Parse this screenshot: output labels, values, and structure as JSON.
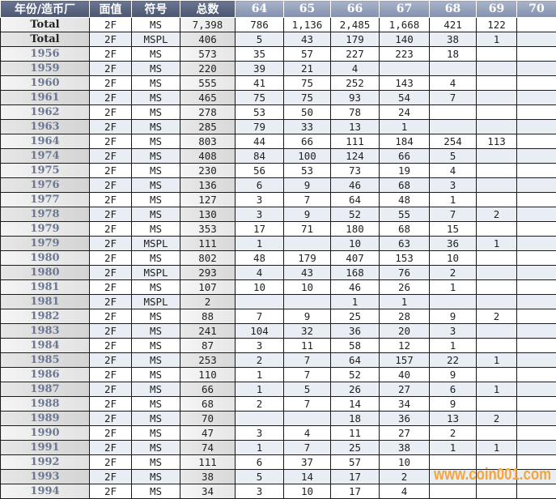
{
  "headers": [
    "年份/造币厂",
    "面值",
    "符号",
    "总数",
    "64",
    "65",
    "66",
    "67",
    "68",
    "69",
    "70"
  ],
  "rows": [
    [
      "Total",
      "2F",
      "MS",
      "7,398",
      "786",
      "1,136",
      "2,485",
      "1,668",
      "421",
      "122",
      ""
    ],
    [
      "Total",
      "2F",
      "MSPL",
      "406",
      "5",
      "43",
      "179",
      "140",
      "38",
      "1",
      ""
    ],
    [
      "1956",
      "2F",
      "MS",
      "573",
      "35",
      "57",
      "227",
      "223",
      "18",
      "",
      ""
    ],
    [
      "1959",
      "2F",
      "MS",
      "220",
      "39",
      "21",
      "4",
      "",
      "",
      "",
      ""
    ],
    [
      "1960",
      "2F",
      "MS",
      "555",
      "41",
      "75",
      "252",
      "143",
      "4",
      "",
      ""
    ],
    [
      "1961",
      "2F",
      "MS",
      "465",
      "75",
      "75",
      "93",
      "54",
      "7",
      "",
      ""
    ],
    [
      "1962",
      "2F",
      "MS",
      "278",
      "53",
      "50",
      "78",
      "24",
      "",
      "",
      ""
    ],
    [
      "1963",
      "2F",
      "MS",
      "285",
      "79",
      "33",
      "13",
      "1",
      "",
      "",
      ""
    ],
    [
      "1964",
      "2F",
      "MS",
      "803",
      "44",
      "66",
      "111",
      "184",
      "254",
      "113",
      ""
    ],
    [
      "1974",
      "2F",
      "MS",
      "408",
      "84",
      "100",
      "124",
      "66",
      "5",
      "",
      ""
    ],
    [
      "1975",
      "2F",
      "MS",
      "230",
      "56",
      "53",
      "73",
      "19",
      "4",
      "",
      ""
    ],
    [
      "1976",
      "2F",
      "MS",
      "136",
      "6",
      "9",
      "46",
      "68",
      "3",
      "",
      ""
    ],
    [
      "1977",
      "2F",
      "MS",
      "127",
      "3",
      "7",
      "64",
      "48",
      "1",
      "",
      ""
    ],
    [
      "1978",
      "2F",
      "MS",
      "130",
      "3",
      "9",
      "52",
      "55",
      "7",
      "2",
      ""
    ],
    [
      "1979",
      "2F",
      "MS",
      "353",
      "17",
      "71",
      "180",
      "68",
      "15",
      "",
      ""
    ],
    [
      "1979",
      "2F",
      "MSPL",
      "111",
      "1",
      "",
      "10",
      "63",
      "36",
      "1",
      ""
    ],
    [
      "1980",
      "2F",
      "MS",
      "802",
      "48",
      "179",
      "407",
      "153",
      "10",
      "",
      ""
    ],
    [
      "1980",
      "2F",
      "MSPL",
      "293",
      "4",
      "43",
      "168",
      "76",
      "2",
      "",
      ""
    ],
    [
      "1981",
      "2F",
      "MS",
      "107",
      "10",
      "10",
      "46",
      "26",
      "1",
      "",
      ""
    ],
    [
      "1981",
      "2F",
      "MSPL",
      "2",
      "",
      "",
      "1",
      "1",
      "",
      "",
      ""
    ],
    [
      "1982",
      "2F",
      "MS",
      "88",
      "7",
      "9",
      "25",
      "28",
      "9",
      "2",
      ""
    ],
    [
      "1983",
      "2F",
      "MS",
      "241",
      "104",
      "32",
      "36",
      "20",
      "3",
      "",
      ""
    ],
    [
      "1984",
      "2F",
      "MS",
      "87",
      "3",
      "11",
      "58",
      "12",
      "1",
      "",
      ""
    ],
    [
      "1985",
      "2F",
      "MS",
      "253",
      "2",
      "7",
      "64",
      "157",
      "22",
      "1",
      ""
    ],
    [
      "1986",
      "2F",
      "MS",
      "110",
      "1",
      "7",
      "52",
      "40",
      "9",
      "",
      ""
    ],
    [
      "1987",
      "2F",
      "MS",
      "66",
      "1",
      "5",
      "26",
      "27",
      "6",
      "1",
      ""
    ],
    [
      "1988",
      "2F",
      "MS",
      "68",
      "2",
      "7",
      "14",
      "34",
      "9",
      "",
      ""
    ],
    [
      "1989",
      "2F",
      "MS",
      "70",
      "",
      "",
      "18",
      "36",
      "13",
      "2",
      ""
    ],
    [
      "1990",
      "2F",
      "MS",
      "47",
      "3",
      "4",
      "11",
      "27",
      "2",
      "",
      ""
    ],
    [
      "1991",
      "2F",
      "MS",
      "74",
      "1",
      "7",
      "25",
      "38",
      "1",
      "1",
      ""
    ],
    [
      "1992",
      "2F",
      "MS",
      "111",
      "6",
      "37",
      "57",
      "10",
      "",
      "",
      ""
    ],
    [
      "1993",
      "2F",
      "MS",
      "38",
      "5",
      "14",
      "17",
      "2",
      "",
      "",
      ""
    ],
    [
      "1994",
      "2F",
      "MS",
      "34",
      "3",
      "10",
      "17",
      "4",
      "",
      "",
      ""
    ]
  ],
  "watermark": "www.coin001.com"
}
